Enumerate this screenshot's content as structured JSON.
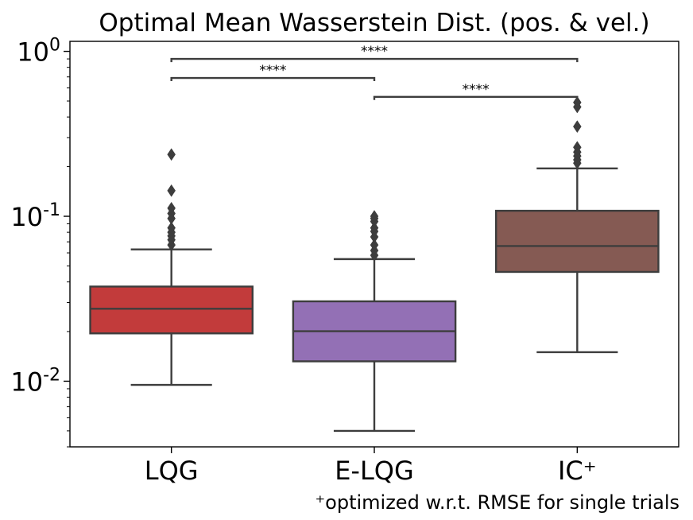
{
  "chart_data": {
    "type": "box",
    "title": "Optimal Mean Wasserstein Dist. (pos. & vel.)",
    "yscale": "log",
    "ylim": [
      0.004,
      1.15
    ],
    "y_ticks": [
      {
        "value": 1,
        "base": "10",
        "exp": "0"
      },
      {
        "value": 0.1,
        "base": "10",
        "exp": "-1"
      },
      {
        "value": 0.01,
        "base": "10",
        "exp": "-2"
      }
    ],
    "categories": [
      "LQG",
      "E-LQG",
      "IC⁺"
    ],
    "colors": [
      "#c23b3b",
      "#9370b5",
      "#855a53"
    ],
    "boxes": [
      {
        "whisker_low": 0.0095,
        "q1": 0.0195,
        "median": 0.0275,
        "q3": 0.0375,
        "whisker_high": 0.063,
        "outliers": [
          0.067,
          0.072,
          0.076,
          0.08,
          0.085,
          0.097,
          0.104,
          0.112,
          0.143,
          0.237
        ]
      },
      {
        "whisker_low": 0.005,
        "q1": 0.0132,
        "median": 0.0201,
        "q3": 0.0305,
        "whisker_high": 0.055,
        "outliers": [
          0.058,
          0.062,
          0.067,
          0.075,
          0.081,
          0.085,
          0.093,
          0.097,
          0.1
        ]
      },
      {
        "whisker_low": 0.015,
        "q1": 0.046,
        "median": 0.066,
        "q3": 0.108,
        "whisker_high": 0.195,
        "outliers": [
          0.21,
          0.22,
          0.232,
          0.245,
          0.262,
          0.35,
          0.46,
          0.49
        ]
      }
    ],
    "significance": [
      {
        "from": 0,
        "to": 2,
        "y": 0.9,
        "label": "****"
      },
      {
        "from": 0,
        "to": 1,
        "y": 0.69,
        "label": "****"
      },
      {
        "from": 1,
        "to": 2,
        "y": 0.53,
        "label": "****"
      }
    ]
  },
  "footnote": "⁺optimized w.r.t. RMSE for single trials"
}
